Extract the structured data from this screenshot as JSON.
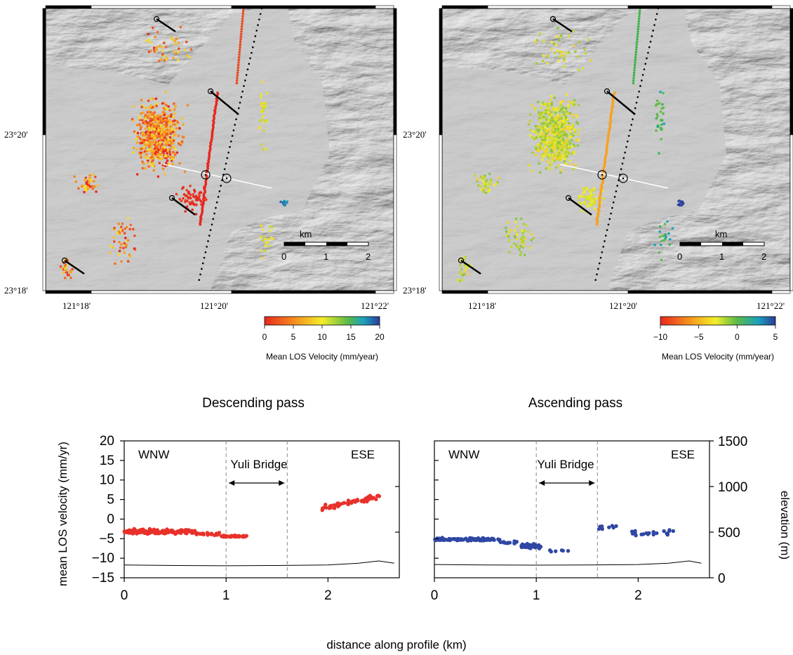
{
  "maps": [
    {
      "id": "descending",
      "y_ticks": [
        "23°20'",
        "23°18'"
      ],
      "x_ticks": [
        "121°18'",
        "121°20'",
        "121°22'"
      ],
      "scale_bar": {
        "unit": "km",
        "ticks": [
          "0",
          "1",
          "2"
        ]
      },
      "colorbar": {
        "label": "Mean LOS Velocity (mm/year)",
        "ticks": [
          "0",
          "5",
          "10",
          "15",
          "20"
        ],
        "range": [
          0,
          20
        ]
      }
    },
    {
      "id": "ascending",
      "y_ticks": [
        "23°20'",
        "23°18'"
      ],
      "x_ticks": [
        "121°18'",
        "121°20'",
        "121°22'"
      ],
      "scale_bar": {
        "unit": "km",
        "ticks": [
          "0",
          "1",
          "2"
        ]
      },
      "colorbar": {
        "label": "Mean LOS Velocity (mm/year)",
        "ticks": [
          "−10",
          "−5",
          "0",
          "5"
        ],
        "range": [
          -10,
          5
        ]
      }
    }
  ],
  "profiles": {
    "xlabel": "distance along profile (km)",
    "ylabel_left": "mean LOS velocity (mm/yr)",
    "ylabel_right": "elevation (m)",
    "left_direction": "WNW",
    "right_direction": "ESE",
    "bridge_label": "Yuli Bridge"
  },
  "chart_data": [
    {
      "type": "scatter",
      "title": "Descending pass",
      "xlabel": "distance along profile (km)",
      "ylabel": "mean LOS velocity (mm/yr)",
      "xlim": [
        0,
        2.7
      ],
      "ylim": [
        -15,
        20
      ],
      "x_ticks": [
        "0",
        "1",
        "2"
      ],
      "y_ticks": [
        "20",
        "15",
        "10",
        "5",
        "0",
        "−5",
        "−10",
        "−15"
      ],
      "color": "#e8312a",
      "bridge_span_km": [
        1.0,
        1.6
      ],
      "clusters": [
        {
          "x": [
            0.0,
            0.7
          ],
          "y_center": -3.2,
          "y_spread": 0.9,
          "n": 180
        },
        {
          "x": [
            0.7,
            0.95
          ],
          "y_center": -3.8,
          "y_spread": 0.5,
          "n": 22
        },
        {
          "x": [
            0.95,
            1.2
          ],
          "y_center": -4.4,
          "y_spread": 0.3,
          "n": 40
        },
        {
          "x": [
            1.92,
            2.52
          ],
          "y_center_start": 2.7,
          "y_center_end": 5.8,
          "y_spread": 0.9,
          "n": 55
        }
      ],
      "elevation_m": {
        "x": [
          0,
          0.5,
          1.0,
          1.5,
          2.0,
          2.3,
          2.5,
          2.65
        ],
        "y": [
          140,
          135,
          132,
          135,
          140,
          160,
          185,
          160
        ]
      }
    },
    {
      "type": "scatter",
      "title": "Ascending pass",
      "xlabel": "distance along profile (km)",
      "ylabel_right": "elevation (m)",
      "xlim": [
        0,
        2.7
      ],
      "ylim": [
        -15,
        20
      ],
      "x_ticks": [
        "0",
        "1",
        "2"
      ],
      "y2_ticks": [
        "1500",
        "1000",
        "500",
        "0"
      ],
      "y2lim": [
        0,
        1500
      ],
      "color": "#2f47a4",
      "bridge_span_km": [
        1.0,
        1.6
      ],
      "clusters": [
        {
          "x": [
            0.0,
            0.65
          ],
          "y_center": -5.2,
          "y_spread": 0.5,
          "n": 110
        },
        {
          "x": [
            0.65,
            0.85
          ],
          "y_center": -6.0,
          "y_spread": 0.6,
          "n": 12
        },
        {
          "x": [
            0.85,
            1.05
          ],
          "y_center": -6.9,
          "y_spread": 0.8,
          "n": 38
        },
        {
          "x": [
            1.1,
            1.35
          ],
          "y_center": -8.2,
          "y_spread": 0.5,
          "n": 6
        },
        {
          "x": [
            1.6,
            1.8
          ],
          "y_center": -2.0,
          "y_spread": 1.0,
          "n": 8
        },
        {
          "x": [
            1.9,
            2.4
          ],
          "y_center": -3.6,
          "y_spread": 1.3,
          "n": 20
        }
      ],
      "elevation_m": {
        "x": [
          0,
          0.5,
          1.0,
          1.5,
          2.0,
          2.3,
          2.5,
          2.62
        ],
        "y": [
          145,
          140,
          138,
          140,
          145,
          160,
          185,
          160
        ]
      }
    }
  ]
}
